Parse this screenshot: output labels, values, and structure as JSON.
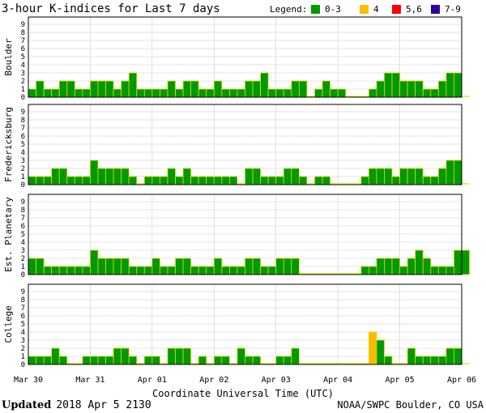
{
  "chart_data": {
    "type": "bar",
    "title": "3-hour K-indices for Last 7 days",
    "legend": {
      "label": "Legend:",
      "items": [
        {
          "label": "0-3",
          "color": "#009900"
        },
        {
          "label": "4",
          "color": "#ffbb00"
        },
        {
          "label": "5,6",
          "color": "#ff0000"
        },
        {
          "label": "7-9",
          "color": "#330099"
        }
      ]
    },
    "ylim": [
      0,
      9
    ],
    "yticks": [
      "0",
      "1",
      "2",
      "3",
      "4",
      "5",
      "6",
      "7",
      "8",
      "9"
    ],
    "grid": true,
    "xlabel": "Coordinate Universal Time (UTC)",
    "xticks": [
      "Mar 30",
      "Mar 31",
      "Apr 01",
      "Apr 02",
      "Apr 03",
      "Apr 04",
      "Apr 05",
      "Apr 06"
    ],
    "panels": [
      {
        "name": "Boulder",
        "values": [
          1,
          2,
          1,
          1,
          2,
          2,
          1,
          1,
          2,
          2,
          2,
          1,
          2,
          3,
          1,
          1,
          1,
          1,
          2,
          1,
          2,
          2,
          1,
          1,
          2,
          1,
          1,
          1,
          2,
          2,
          3,
          1,
          1,
          1,
          2,
          2,
          0,
          1,
          2,
          1,
          1,
          0,
          0,
          0,
          1,
          2,
          3,
          3,
          2,
          2,
          2,
          1,
          1,
          2,
          3,
          3,
          0
        ]
      },
      {
        "name": "Fredericksburg",
        "values": [
          1,
          1,
          1,
          2,
          2,
          1,
          1,
          1,
          3,
          2,
          2,
          2,
          2,
          1,
          0,
          1,
          1,
          1,
          2,
          1,
          2,
          1,
          1,
          1,
          1,
          1,
          1,
          0,
          2,
          2,
          1,
          1,
          1,
          2,
          2,
          1,
          0,
          1,
          1,
          0,
          0,
          0,
          0,
          1,
          2,
          2,
          2,
          1,
          2,
          2,
          2,
          1,
          1,
          2,
          3,
          3,
          0
        ]
      },
      {
        "name": "Est. Planetary",
        "values": [
          2,
          2,
          1,
          1,
          1,
          1,
          1,
          1,
          3,
          2,
          2,
          2,
          2,
          1,
          1,
          1,
          2,
          1,
          1,
          2,
          2,
          1,
          1,
          1,
          2,
          1,
          1,
          1,
          2,
          2,
          1,
          1,
          2,
          2,
          2,
          0,
          0,
          0,
          0,
          0,
          0,
          0,
          0,
          1,
          1,
          2,
          2,
          2,
          1,
          2,
          3,
          2,
          1,
          1,
          1,
          3,
          3
        ]
      },
      {
        "name": "College",
        "values": [
          1,
          1,
          1,
          2,
          1,
          0,
          0,
          1,
          1,
          1,
          1,
          2,
          2,
          1,
          0,
          1,
          1,
          0,
          2,
          2,
          2,
          0,
          1,
          0,
          1,
          1,
          0,
          2,
          1,
          1,
          0,
          0,
          1,
          1,
          2,
          0,
          0,
          0,
          0,
          0,
          0,
          0,
          0,
          0,
          4,
          3,
          1,
          0,
          0,
          2,
          1,
          1,
          1,
          1,
          2,
          2,
          0
        ]
      }
    ]
  },
  "footer": {
    "updated_label": "Updated",
    "updated_value": "2018 Apr  5 2130",
    "credit": "NOAA/SWPC Boulder, CO USA"
  }
}
